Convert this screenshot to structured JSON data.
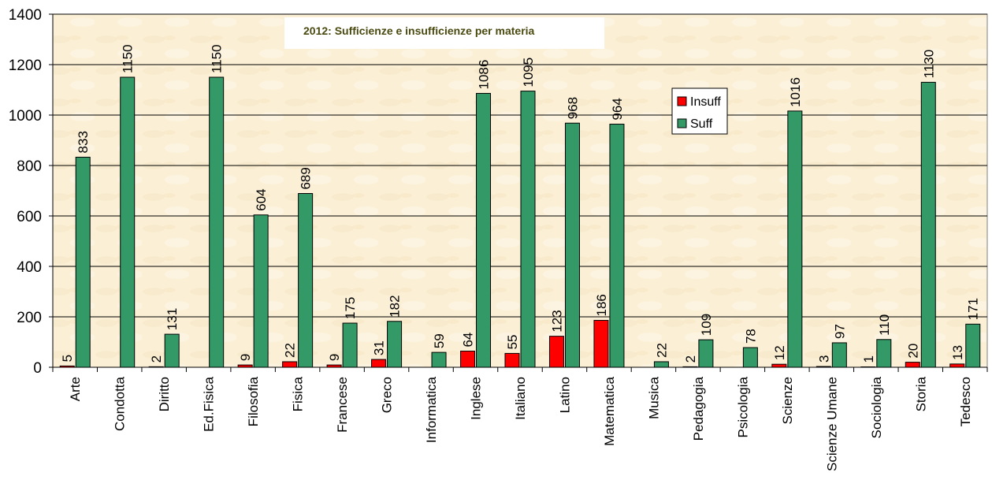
{
  "chart_data": {
    "type": "bar",
    "title": "2012: Sufficienze e insufficienze per materia",
    "xlabel": "",
    "ylabel": "",
    "ylim": [
      0,
      1400
    ],
    "yticks": [
      0,
      200,
      400,
      600,
      800,
      1000,
      1200,
      1400
    ],
    "grid": true,
    "legend_position": "top-right-center",
    "categories": [
      "Arte",
      "Condotta",
      "Diritto",
      "Ed.Fisica",
      "Filosofia",
      "Fisica",
      "Francese",
      "Greco",
      "Informatica",
      "Inglese",
      "Italiano",
      "Latino",
      "Matematica",
      "Musica",
      "Pedagogia",
      "Psicologia",
      "Scienze",
      "Scienze Umane",
      "Sociologia",
      "Storia",
      "Tedesco"
    ],
    "series": [
      {
        "name": "Insuff",
        "color": "#ff0000",
        "values": [
          5,
          null,
          2,
          null,
          9,
          22,
          9,
          31,
          null,
          64,
          55,
          123,
          186,
          null,
          2,
          null,
          12,
          3,
          1,
          20,
          13
        ]
      },
      {
        "name": "Suff",
        "color": "#339966",
        "values": [
          833,
          1150,
          131,
          1150,
          604,
          689,
          175,
          182,
          59,
          1086,
          1095,
          968,
          964,
          22,
          109,
          78,
          1016,
          97,
          110,
          1130,
          171
        ]
      }
    ],
    "plot_background": "#faf0d8"
  }
}
